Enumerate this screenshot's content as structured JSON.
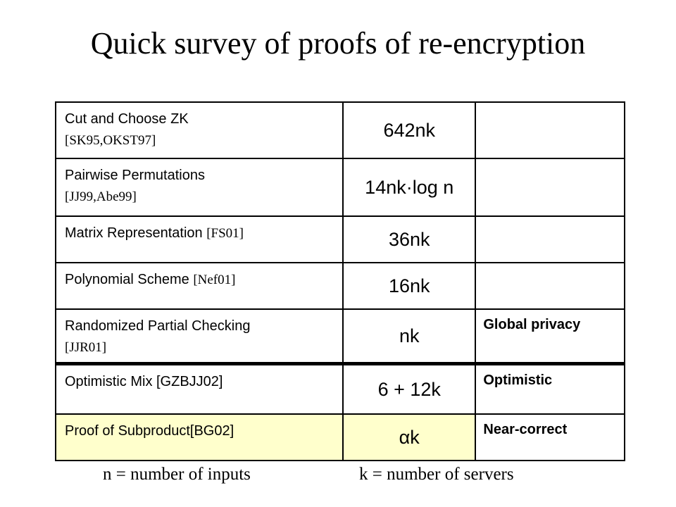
{
  "title": "Quick survey of proofs of re-encryption",
  "rows": [
    {
      "name": "Cut and Choose ZK",
      "cite": "[SK95,OKST97]",
      "cost": "642nk",
      "note": ""
    },
    {
      "name": "Pairwise Permutations",
      "cite": "[JJ99,Abe99]",
      "cost": "14nk·log n",
      "note": ""
    },
    {
      "name": "Matrix Representation",
      "cite": "[FS01]",
      "cost": "36nk",
      "note": ""
    },
    {
      "name": "Polynomial Scheme",
      "cite": "[Nef01]",
      "cost": "16nk",
      "note": ""
    },
    {
      "name": "Randomized Partial Checking",
      "cite": "[JJR01]",
      "cost": "nk",
      "note": "Global privacy"
    },
    {
      "name": "Optimistic Mix [GZBJJ02]",
      "cite": "",
      "cost": "6 + 12k",
      "note": "Optimistic"
    },
    {
      "name": "Proof of Subproduct[BG02]",
      "cite": "",
      "cost": "αk",
      "note": "Near-correct"
    }
  ],
  "footer": {
    "n_def": "n = number of inputs",
    "k_def": "k = number of servers"
  },
  "colors": {
    "highlight": "#ffffcc",
    "text": "#000000",
    "background": "#ffffff"
  }
}
